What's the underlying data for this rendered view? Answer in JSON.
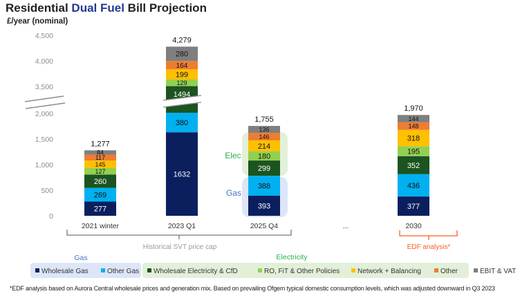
{
  "title": {
    "part1": "Residential ",
    "highlight": "Dual Fuel",
    "part2": " Bill Projection"
  },
  "unit_label": "£/year (nominal)",
  "chart_data": {
    "type": "bar",
    "stacked": true,
    "y_axis_break": true,
    "yticks": [
      "0",
      "500",
      "1,000",
      "1,500",
      "2,000",
      "3,500",
      "4,000",
      "4,500"
    ],
    "ytick_values": [
      0,
      500,
      1000,
      1500,
      2000,
      3500,
      4000,
      4500
    ],
    "categories": [
      "2021 winter",
      "2023 Q1",
      "2025 Q4",
      "2030"
    ],
    "ellipsis_label": "...",
    "totals": [
      "1,277",
      "4,279",
      "1,755",
      "1,970"
    ],
    "total_values": [
      1277,
      4279,
      1755,
      1970
    ],
    "series": [
      {
        "name": "Wholesale Gas",
        "color": "#0b1f5e",
        "values": [
          277,
          1632,
          393,
          377
        ]
      },
      {
        "name": "Other Gas",
        "color": "#00b0f0",
        "values": [
          269,
          380,
          388,
          436
        ]
      },
      {
        "name": "Wholesale Electricity & CfD",
        "color": "#1b5420",
        "values": [
          260,
          1494,
          299,
          352
        ]
      },
      {
        "name": "RO, FiT & Other Policies",
        "color": "#92d050",
        "values": [
          127,
          129,
          180,
          195
        ]
      },
      {
        "name": "Network + Balancing",
        "color": "#ffc000",
        "values": [
          145,
          199,
          214,
          318
        ]
      },
      {
        "name": "Other",
        "color": "#ed7d31",
        "values": [
          117,
          164,
          146,
          148
        ]
      },
      {
        "name": "EBIT & VAT",
        "color": "#7f7f7f",
        "values": [
          84,
          280,
          136,
          144
        ]
      }
    ],
    "highlight_labels": {
      "elec": "Elec",
      "gas": "Gas"
    },
    "brackets": {
      "historical": "Historical SVT price cap",
      "edf": "EDF analysis*"
    },
    "legend_groups": {
      "gas": "Gas",
      "electricity": "Electricity"
    },
    "legend_placement": "bottom",
    "colors": {
      "gas_group": "#4472c4",
      "elec_group": "#2ecc71",
      "edf": "#ff5a1f",
      "gas_bg": "#dce6f7",
      "elec_bg": "#e2f0d9"
    }
  },
  "footnote": "*EDF analysis based on Aurora Central wholesale prices and generation mix. Based on prevailing Ofgem typical domestic consumption levels, which was adjusted downward in Q3 2023"
}
